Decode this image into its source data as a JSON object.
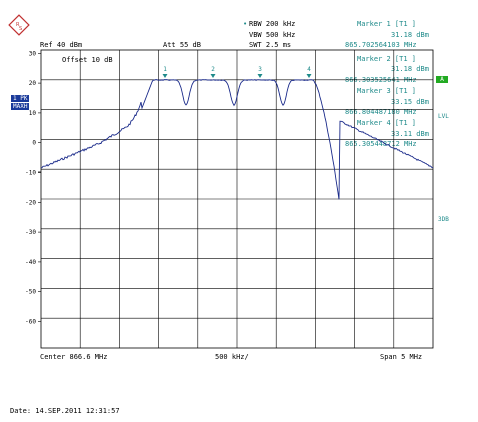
{
  "header": {
    "rbw": "RBW  200 kHz",
    "vbw": "VBW  500 kHz",
    "swt": "SWT  2.5 ms",
    "ref": "Ref  40 dBm",
    "att": "Att  55 dB",
    "offset": "Offset  10 dB"
  },
  "markers": [
    {
      "title": "Marker 1 [T1 ]",
      "level": "31.18 dBm",
      "freq": "865.702564103 MHz"
    },
    {
      "title": "Marker 2 [T1 ]",
      "level": "31.18 dBm",
      "freq": "866.303525641 MHz"
    },
    {
      "title": "Marker 3 [T1 ]",
      "level": "33.15 dBm",
      "freq": "866.804487180 MHz"
    },
    {
      "title": "Marker 4 [T1 ]",
      "level": "33.11 dBm",
      "freq": "865.305448712 MHz"
    }
  ],
  "marker_labels": [
    "1",
    "2",
    "3",
    "4"
  ],
  "left_tags": {
    "tag1": "1 PK",
    "tag2": "MAXH"
  },
  "right_tags": {
    "a": "A",
    "lvl": "LVL",
    "db3": "3DB"
  },
  "y_ticks": [
    "30",
    "20",
    "10",
    "0",
    "-10",
    "-20",
    "-30",
    "-40",
    "-50",
    "-60"
  ],
  "footer": {
    "center": "Center  866.6 MHz",
    "div": "500 kHz/",
    "span": "Span  5 MHz",
    "date": "Date:  14.SEP.2011   12:31:57"
  },
  "colors": {
    "trace": "#1a2a8a",
    "marker": "#1e8a8a",
    "grid": "#000000",
    "green": "#22aa22"
  }
}
